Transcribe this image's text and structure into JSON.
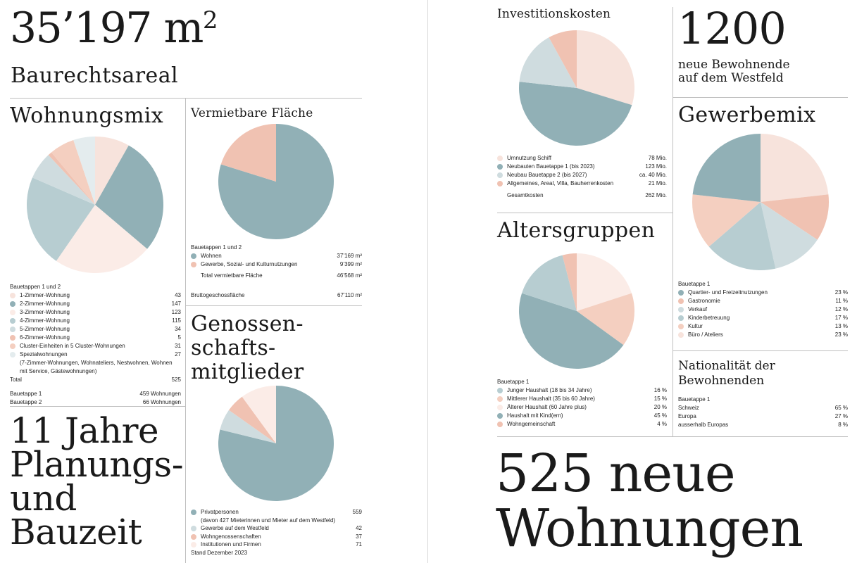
{
  "palette": {
    "p1": "#f7e3dc",
    "teal": "#91b0b6",
    "p3": "#fbece7",
    "mid": "#b7cdd1",
    "light": "#cfdcdf",
    "salmon": "#f0c2b2",
    "peach": "#f4cfc0",
    "pale": "#e4ecee",
    "cream": "#fcefe9",
    "rose": "#f3d6ca"
  },
  "left": {
    "area": {
      "value": "35’197 m",
      "sup": "2",
      "label": "Baurechtsareal"
    },
    "wohnungsmix": {
      "title": "Wohnungsmix",
      "subtitle": "Bauetappen 1 und 2",
      "items": [
        {
          "label": "1-Zimmer-Wohnung",
          "value": "43"
        },
        {
          "label": "2-Zimmer-Wohnung",
          "value": "147"
        },
        {
          "label": "3-Zimmer-Wohnung",
          "value": "123"
        },
        {
          "label": "4-Zimmer-Wohnung",
          "value": "115"
        },
        {
          "label": "5-Zimmer-Wohnung",
          "value": "34"
        },
        {
          "label": "6-Zimmer-Wohnung",
          "value": "5"
        },
        {
          "label": "Cluster-Einheiten in 5 Cluster-Wohnungen",
          "value": "31"
        },
        {
          "label": "Spezialwohnungen",
          "value": "27",
          "detail": "(7-Zimmer-Wohnungen, Wohnateliers, Nestwohnen, Wohnen mit Service, Gästewohnungen)"
        }
      ],
      "total_label": "Total",
      "total_value": "525",
      "etappe1_label": "Bauetappe 1",
      "etappe1_value": "459 Wohnungen",
      "etappe2_label": "Bauetappe 2",
      "etappe2_value": "66 Wohnungen"
    },
    "flaeche": {
      "title": "Vermietbare Fläche",
      "subtitle": "Bauetappen 1 und 2",
      "items": [
        {
          "label": "Wohnen",
          "value": "37’169 m²"
        },
        {
          "label": "Gewerbe, Sozial- und Kulturnutzungen",
          "value": "9’399 m²"
        }
      ],
      "total_label": "Total vermietbare Fläche",
      "total_value": "46’568 m²",
      "bgf_label": "Bruttogeschossfläche",
      "bgf_value": "67’110 m²"
    },
    "jahre": {
      "line1": "11 Jahre",
      "line2": "Planungs-",
      "line3": "und",
      "line4": "Bauzeit"
    },
    "genossen": {
      "line1": "Genossen-",
      "line2": "schafts-",
      "line3": "mitglieder",
      "items": [
        {
          "label": "Privatpersonen",
          "value": "559",
          "detail": "(davon 427 Mieterinnen und Mieter auf dem Westfeld)"
        },
        {
          "label": "Gewerbe auf dem Westfeld",
          "value": "42"
        },
        {
          "label": "Wohngenossenschaften",
          "value": "37"
        },
        {
          "label": "Institutionen und Firmen",
          "value": "71"
        }
      ],
      "stand": "Stand Dezember 2023"
    }
  },
  "right": {
    "invest": {
      "title": "Investitionskosten",
      "items": [
        {
          "label": "Umnutzung Schiff",
          "value": "78 Mio."
        },
        {
          "label": "Neubauten Bauetappe 1 (bis 2023)",
          "value": "123 Mio."
        },
        {
          "label": "Neubau Bauetappe 2 (bis 2027)",
          "value": "ca. 40 Mio."
        },
        {
          "label": "Allgemeines, Areal, Villa, Bauherrenkosten",
          "value": "21 Mio."
        }
      ],
      "total_label": "Gesamtkosten",
      "total_value": "262 Mio."
    },
    "bewohnende": {
      "value": "1200",
      "line1": "neue Bewohnende",
      "line2": "auf dem Westfeld"
    },
    "gewerbemix": {
      "title": "Gewerbemix",
      "subtitle": "Bauetappe 1",
      "items": [
        {
          "label": "Quartier- und Freizeitnutzungen",
          "value": "23 %"
        },
        {
          "label": "Gastronomie",
          "value": "11 %"
        },
        {
          "label": "Verkauf",
          "value": "12 %"
        },
        {
          "label": "Kinderbetreuung",
          "value": "17 %"
        },
        {
          "label": "Kultur",
          "value": "13 %"
        },
        {
          "label": "Büro / Ateliers",
          "value": "23 %"
        }
      ]
    },
    "alter": {
      "title": "Altersgruppen",
      "subtitle": "Bauetappe 1",
      "items": [
        {
          "label": "Junger Haushalt (18 bis 34 Jahre)",
          "value": "16 %"
        },
        {
          "label": "Mittlerer Haushalt (35 bis 60 Jahre)",
          "value": "15 %"
        },
        {
          "label": "Älterer Haushalt (60 Jahre plus)",
          "value": "20 %"
        },
        {
          "label": "Haushalt mit Kind(ern)",
          "value": "45 %"
        },
        {
          "label": "Wohngemeinschaft",
          "value": "4 %"
        }
      ]
    },
    "nationalitaet": {
      "line1": "Nationalität der",
      "line2": "Bewohnenden",
      "subtitle": "Bauetappe 1",
      "items": [
        {
          "label": "Schweiz",
          "value": "65 %"
        },
        {
          "label": "Europa",
          "value": "27 %"
        },
        {
          "label": "ausserhalb Europas",
          "value": "8 %"
        }
      ]
    },
    "wohnungen": {
      "line1": "525 neue",
      "line2": "Wohnungen"
    }
  },
  "chart_data": [
    {
      "type": "pie",
      "title": "Wohnungsmix",
      "categories": [
        "1-Zimmer-Wohnung",
        "2-Zimmer-Wohnung",
        "3-Zimmer-Wohnung",
        "4-Zimmer-Wohnung",
        "5-Zimmer-Wohnung",
        "6-Zimmer-Wohnung",
        "Cluster-Einheiten in 5 Cluster-Wohnungen",
        "Spezialwohnungen"
      ],
      "values": [
        43,
        147,
        123,
        115,
        34,
        5,
        31,
        27
      ],
      "colors": [
        "#f7e3dc",
        "#91b0b6",
        "#fbece7",
        "#b7cdd1",
        "#cfdcdf",
        "#f0c2b2",
        "#f4cfc0",
        "#e4ecee"
      ]
    },
    {
      "type": "pie",
      "title": "Vermietbare Fläche",
      "categories": [
        "Wohnen",
        "Gewerbe, Sozial- und Kulturnutzungen"
      ],
      "values": [
        37169,
        9399
      ],
      "colors": [
        "#91b0b6",
        "#f0c2b2"
      ]
    },
    {
      "type": "pie",
      "title": "Genossenschaftsmitglieder",
      "categories": [
        "Privatpersonen",
        "Gewerbe auf dem Westfeld",
        "Wohngenossenschaften",
        "Institutionen und Firmen"
      ],
      "values": [
        559,
        42,
        37,
        71
      ],
      "colors": [
        "#91b0b6",
        "#cfdcdf",
        "#f0c2b2",
        "#fbece7"
      ]
    },
    {
      "type": "pie",
      "title": "Investitionskosten",
      "categories": [
        "Umnutzung Schiff",
        "Neubauten Bauetappe 1 (bis 2023)",
        "Neubau Bauetappe 2 (bis 2027)",
        "Allgemeines, Areal, Villa, Bauherrenkosten"
      ],
      "values": [
        78,
        123,
        40,
        21
      ],
      "colors": [
        "#f7e3dc",
        "#91b0b6",
        "#cfdcdf",
        "#f0c2b2"
      ]
    },
    {
      "type": "pie",
      "title": "Gewerbemix",
      "categories": [
        "Quartier- und Freizeitnutzungen",
        "Gastronomie",
        "Verkauf",
        "Kinderbetreuung",
        "Kultur",
        "Büro / Ateliers"
      ],
      "values": [
        23,
        11,
        12,
        17,
        13,
        23
      ],
      "colors": [
        "#91b0b6",
        "#f0c2b2",
        "#cfdcdf",
        "#b7cdd1",
        "#f4cfc0",
        "#f7e3dc"
      ],
      "order": [
        5,
        1,
        2,
        3,
        4,
        0
      ]
    },
    {
      "type": "pie",
      "title": "Altersgruppen",
      "categories": [
        "Junger Haushalt (18 bis 34 Jahre)",
        "Mittlerer Haushalt (35 bis 60 Jahre)",
        "Älterer Haushalt (60 Jahre plus)",
        "Haushalt mit Kind(ern)",
        "Wohngemeinschaft"
      ],
      "values": [
        16,
        15,
        20,
        45,
        4
      ],
      "colors": [
        "#b7cdd1",
        "#f4cfc0",
        "#fbece7",
        "#91b0b6",
        "#f0c2b2"
      ],
      "order": [
        2,
        1,
        3,
        0,
        4
      ]
    }
  ]
}
